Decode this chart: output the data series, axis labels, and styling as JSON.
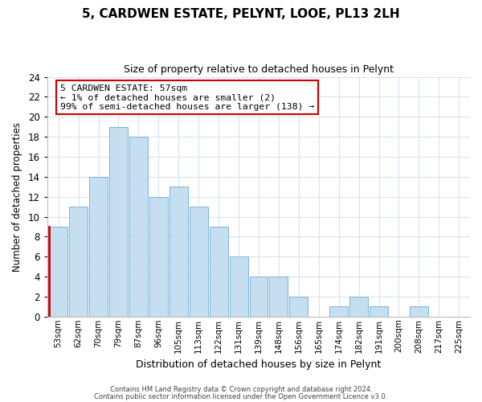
{
  "title": "5, CARDWEN ESTATE, PELYNT, LOOE, PL13 2LH",
  "subtitle": "Size of property relative to detached houses in Pelynt",
  "xlabel": "Distribution of detached houses by size in Pelynt",
  "ylabel": "Number of detached properties",
  "bar_labels": [
    "53sqm",
    "62sqm",
    "70sqm",
    "79sqm",
    "87sqm",
    "96sqm",
    "105sqm",
    "113sqm",
    "122sqm",
    "131sqm",
    "139sqm",
    "148sqm",
    "156sqm",
    "165sqm",
    "174sqm",
    "182sqm",
    "191sqm",
    "200sqm",
    "208sqm",
    "217sqm",
    "225sqm"
  ],
  "bar_values": [
    9,
    11,
    14,
    19,
    18,
    12,
    13,
    11,
    9,
    6,
    4,
    4,
    2,
    0,
    1,
    2,
    1,
    0,
    1,
    0,
    0
  ],
  "bar_color": "#c5dff0",
  "bar_edge_color": "#7ab5d8",
  "highlight_color": "#cc0000",
  "ylim": [
    0,
    24
  ],
  "yticks": [
    0,
    2,
    4,
    6,
    8,
    10,
    12,
    14,
    16,
    18,
    20,
    22,
    24
  ],
  "annotation_title": "5 CARDWEN ESTATE: 57sqm",
  "annotation_line1": "← 1% of detached houses are smaller (2)",
  "annotation_line2": "99% of semi-detached houses are larger (138) →",
  "annotation_box_color": "#ffffff",
  "annotation_box_edge": "#cc0000",
  "footer1": "Contains HM Land Registry data © Crown copyright and database right 2024.",
  "footer2": "Contains public sector information licensed under the Open Government Licence v3.0.",
  "bg_color": "#ffffff",
  "grid_color": "#d8e4ed"
}
